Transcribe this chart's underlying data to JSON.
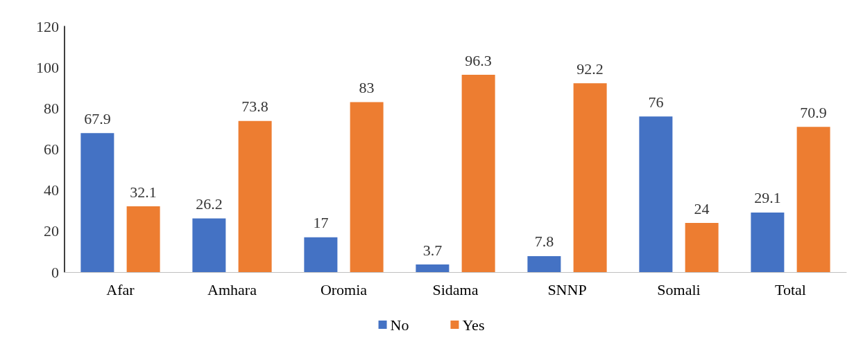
{
  "chart_data": {
    "type": "bar",
    "categories": [
      "Afar",
      "Amhara",
      "Oromia",
      "Sidama",
      "SNNP",
      "Somali",
      "Total"
    ],
    "series": [
      {
        "name": "No",
        "color": "#4472c4",
        "values": [
          67.9,
          26.2,
          17,
          3.7,
          7.8,
          76,
          29.1
        ]
      },
      {
        "name": "Yes",
        "color": "#ed7d31",
        "values": [
          32.1,
          73.8,
          83,
          96.3,
          92.2,
          24,
          70.9
        ]
      }
    ],
    "ylim": [
      0,
      120
    ],
    "yticks": [
      0,
      20,
      40,
      60,
      80,
      100,
      120
    ],
    "data_labels": true,
    "legend": "bottom",
    "grid": false
  }
}
